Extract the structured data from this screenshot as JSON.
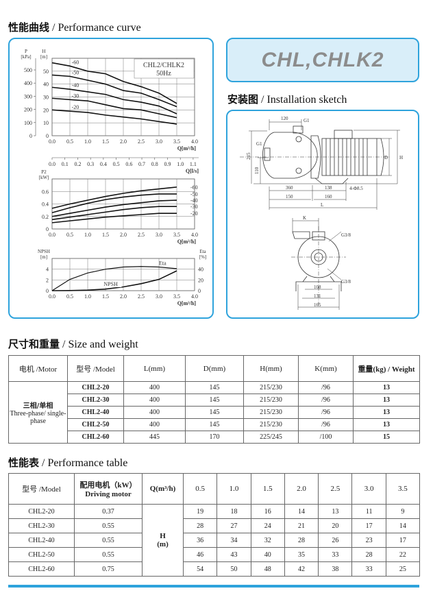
{
  "sections": {
    "perf_curve": {
      "cn": "性能曲线",
      "en": " / Performance curve"
    },
    "install": {
      "cn": "安装图",
      "en": " / Installation sketch"
    },
    "size": {
      "cn": "尺寸和重量",
      "en": " / Size and weight"
    },
    "perf_table": {
      "cn": "性能表",
      "en": " / Performance table"
    }
  },
  "brand": "CHL,CHLK2",
  "chart_data": [
    {
      "type": "line",
      "id": "head",
      "title": "CHL2/CHLK2",
      "subtitle": "50Hz",
      "xlabel": "Q[m³/h]",
      "ylabel": "H [m]",
      "ylabel2": "P [kPa]",
      "xlim": [
        0,
        4
      ],
      "ylim": [
        0,
        60
      ],
      "grid": true,
      "xticks": [
        "0.0",
        "0.5",
        "1.0",
        "1.5",
        "2.0",
        "2.5",
        "3.0",
        "3.5",
        "4.0"
      ],
      "yticks": [
        "0",
        "10",
        "20",
        "30",
        "40",
        "50"
      ],
      "y2ticks": [
        "0",
        "100",
        "200",
        "300",
        "400",
        "500"
      ],
      "x2label": "Q[l/s]",
      "x2ticks": [
        "0.0",
        "0.1",
        "0.2",
        "0.3",
        "0.4",
        "0.5",
        "0.6",
        "0.7",
        "0.8",
        "0.9",
        "1.0",
        "1.1"
      ],
      "x": [
        0,
        0.5,
        1,
        1.5,
        2,
        2.5,
        3,
        3.5
      ],
      "series": [
        {
          "name": "-60",
          "values": [
            56.5,
            54,
            50,
            48,
            42,
            38,
            33,
            25
          ]
        },
        {
          "name": "-50",
          "values": [
            47,
            46,
            43,
            40,
            35,
            33,
            28,
            22.5
          ]
        },
        {
          "name": "-40",
          "values": [
            37.5,
            36,
            34,
            32,
            28,
            26,
            23,
            17
          ]
        },
        {
          "name": "-30",
          "values": [
            29,
            28,
            27,
            24,
            21,
            20,
            17,
            14
          ]
        },
        {
          "name": "-20",
          "values": [
            20,
            19,
            18,
            16,
            14.5,
            13,
            11,
            9
          ]
        }
      ]
    },
    {
      "type": "line",
      "id": "power",
      "xlabel": "Q[m³/h]",
      "ylabel": "P2 [kW]",
      "xlim": [
        0,
        4
      ],
      "ylim": [
        0,
        0.8
      ],
      "grid": true,
      "xticks": [
        "0.0",
        "0.5",
        "1.0",
        "1.5",
        "2.0",
        "2.5",
        "3.0",
        "3.5",
        "4.0"
      ],
      "yticks": [
        "0",
        "0.2",
        "0.4",
        "0.6"
      ],
      "x": [
        0,
        0.5,
        1,
        1.5,
        2,
        2.5,
        3,
        3.5
      ],
      "series": [
        {
          "name": "-60",
          "values": [
            0.33,
            0.4,
            0.46,
            0.52,
            0.57,
            0.61,
            0.64,
            0.67
          ]
        },
        {
          "name": "-50",
          "values": [
            0.26,
            0.34,
            0.41,
            0.47,
            0.51,
            0.54,
            0.56,
            0.56
          ]
        },
        {
          "name": "-40",
          "values": [
            0.2,
            0.25,
            0.3,
            0.35,
            0.39,
            0.42,
            0.45,
            0.46
          ]
        },
        {
          "name": "-30",
          "values": [
            0.15,
            0.19,
            0.23,
            0.27,
            0.31,
            0.34,
            0.36,
            0.36
          ]
        },
        {
          "name": "-20",
          "values": [
            0.1,
            0.13,
            0.16,
            0.19,
            0.21,
            0.23,
            0.25,
            0.25
          ]
        }
      ]
    },
    {
      "type": "line",
      "id": "npsh",
      "xlabel": "Q[m³/h]",
      "ylabel": "NPSH [m]",
      "ylabel2": "Eta [%]",
      "xlim": [
        0,
        4
      ],
      "ylim": [
        0,
        6
      ],
      "y2lim": [
        0,
        60
      ],
      "grid": true,
      "xticks": [
        "0.0",
        "0.5",
        "1.0",
        "1.5",
        "2.0",
        "2.5",
        "3.0",
        "3.5",
        "4.0"
      ],
      "yticks": [
        "0",
        "2",
        "4"
      ],
      "y2ticks": [
        "0",
        "20",
        "40"
      ],
      "x": [
        0,
        0.5,
        1,
        1.5,
        2,
        2.5,
        3,
        3.5
      ],
      "series": [
        {
          "name": "NPSH",
          "axis": "left",
          "values": [
            0,
            0.02,
            0.1,
            0.3,
            0.7,
            1.3,
            2.1,
            3.7
          ]
        },
        {
          "name": "Eta",
          "axis": "right",
          "values": [
            0,
            21,
            33,
            40,
            44,
            45,
            44,
            41
          ]
        }
      ]
    }
  ],
  "sketch": {
    "dim_120": "120",
    "g1_top": "G1",
    "g1_side": "G1",
    "dim_215": "215",
    "dim_110": "110",
    "dim_360": "360",
    "dim_138": "138",
    "holes": "4-Φ8.5",
    "dim_150": "150",
    "dim_160": "160",
    "L": "L",
    "D": "D",
    "H": "H",
    "K": "K",
    "g38_a": "G3/8",
    "g38_b": "G3/8",
    "dim_108": "108",
    "dim_131": "131",
    "dim_165": "165"
  },
  "size_table": {
    "headers": [
      "电机 /Motor",
      "型号 /Model",
      "L(mm)",
      "D(mm)",
      "H(mm)",
      "K(mm)",
      "重量(kg) / Weight"
    ],
    "motor_cn": "三相/单相",
    "motor_en": "Three-phase/ single-phase",
    "rows": [
      [
        "CHL2-20",
        "400",
        "145",
        "215/230",
        "/96",
        "13"
      ],
      [
        "CHL2-30",
        "400",
        "145",
        "215/230",
        "/96",
        "13"
      ],
      [
        "CHL2-40",
        "400",
        "145",
        "215/230",
        "/96",
        "13"
      ],
      [
        "CHL2-50",
        "400",
        "145",
        "215/230",
        "/96",
        "13"
      ],
      [
        "CHL2-60",
        "445",
        "170",
        "225/245",
        "/100",
        "15"
      ]
    ]
  },
  "perf_table": {
    "h_model": "型号 /Model",
    "h_motor_cn": "配用电机（kW）",
    "h_motor_en": "Driving motor",
    "h_q": "Q(m³/h)",
    "q": [
      "0.5",
      "1.0",
      "1.5",
      "2.0",
      "2.5",
      "3.0",
      "3.5"
    ],
    "h_label": "H",
    "h_unit": "(m)",
    "rows": [
      {
        "model": "CHL2-20",
        "kw": "0.37",
        "h": [
          "19",
          "18",
          "16",
          "14",
          "13",
          "11",
          "9"
        ]
      },
      {
        "model": "CHL2-30",
        "kw": "0.55",
        "h": [
          "28",
          "27",
          "24",
          "21",
          "20",
          "17",
          "14"
        ]
      },
      {
        "model": "CHL2-40",
        "kw": "0.55",
        "h": [
          "36",
          "34",
          "32",
          "28",
          "26",
          "23",
          "17"
        ]
      },
      {
        "model": "CHL2-50",
        "kw": "0.55",
        "h": [
          "46",
          "43",
          "40",
          "35",
          "33",
          "28",
          "22"
        ]
      },
      {
        "model": "CHL2-60",
        "kw": "0.75",
        "h": [
          "54",
          "50",
          "48",
          "42",
          "38",
          "33",
          "25"
        ]
      }
    ]
  },
  "colors": {
    "accent": "#2ea3dc",
    "brand_bg": "#d9eef9",
    "brand_text": "#8c8c8c"
  }
}
